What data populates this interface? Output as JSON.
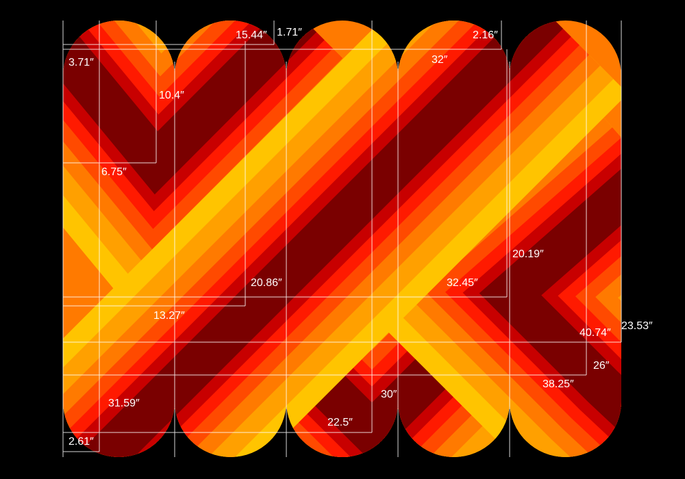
{
  "artwork": {
    "palette": [
      "#ffc400",
      "#ffa000",
      "#ff7a00",
      "#ff4a00",
      "#ff1a00",
      "#c80000",
      "#7a0000"
    ],
    "background": "#000000",
    "guide_color": "#ffffff"
  },
  "labels": [
    {
      "id": "l1",
      "text": "3.71″"
    },
    {
      "id": "l2",
      "text": "10.4″"
    },
    {
      "id": "l3",
      "text": "15.44″"
    },
    {
      "id": "l4",
      "text": "1.71″"
    },
    {
      "id": "l5",
      "text": "2.16″"
    },
    {
      "id": "l6",
      "text": "32″"
    },
    {
      "id": "l7",
      "text": "6.75″"
    },
    {
      "id": "l8",
      "text": "20.19″"
    },
    {
      "id": "l9",
      "text": "20.86″"
    },
    {
      "id": "l10",
      "text": "32.45″"
    },
    {
      "id": "l11",
      "text": "13.27″"
    },
    {
      "id": "l12",
      "text": "40.74″"
    },
    {
      "id": "l13",
      "text": "23.53″"
    },
    {
      "id": "l14",
      "text": "26″"
    },
    {
      "id": "l15",
      "text": "38.25″"
    },
    {
      "id": "l16",
      "text": "31.59″"
    },
    {
      "id": "l17",
      "text": "30″"
    },
    {
      "id": "l18",
      "text": "22.5″"
    },
    {
      "id": "l19",
      "text": "2.61″"
    }
  ]
}
